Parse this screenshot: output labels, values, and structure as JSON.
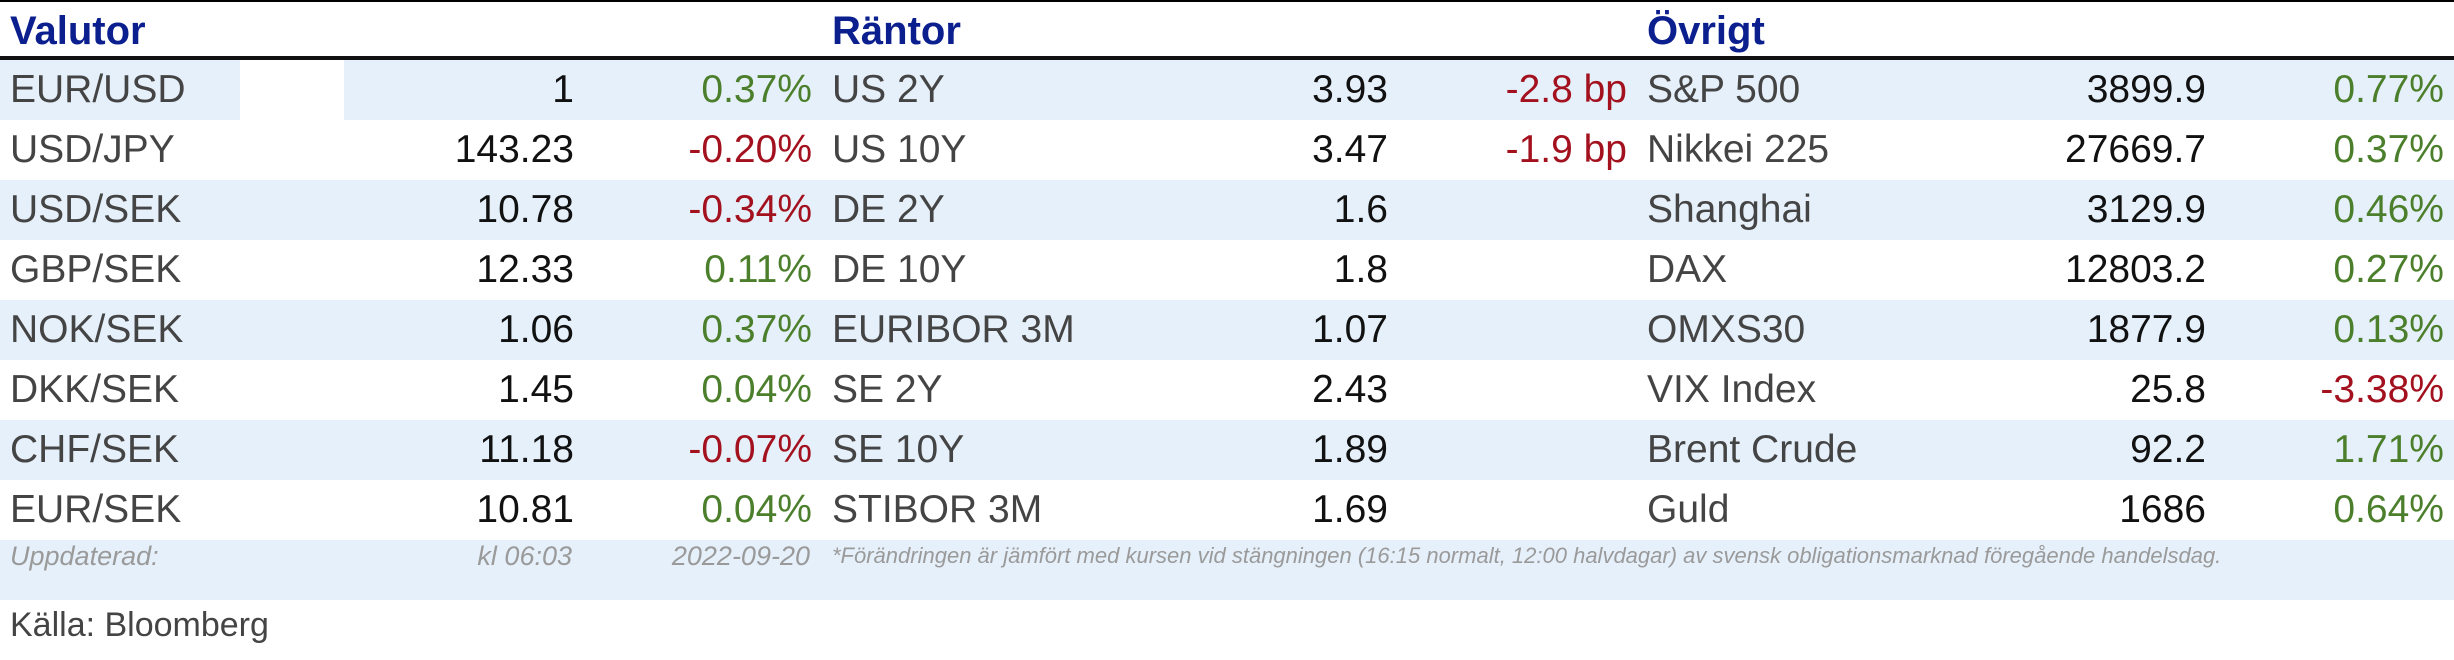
{
  "headers": {
    "valutor": "Valutor",
    "rantor": "Räntor",
    "ovrigt": "Övrigt"
  },
  "valutor": [
    {
      "name": "EUR/USD",
      "value": "1",
      "change": "0.37%",
      "dir": "pos"
    },
    {
      "name": "USD/JPY",
      "value": "143.23",
      "change": "-0.20%",
      "dir": "neg"
    },
    {
      "name": "USD/SEK",
      "value": "10.78",
      "change": "-0.34%",
      "dir": "neg"
    },
    {
      "name": "GBP/SEK",
      "value": "12.33",
      "change": "0.11%",
      "dir": "pos"
    },
    {
      "name": "NOK/SEK",
      "value": "1.06",
      "change": "0.37%",
      "dir": "pos"
    },
    {
      "name": "DKK/SEK",
      "value": "1.45",
      "change": "0.04%",
      "dir": "pos"
    },
    {
      "name": "CHF/SEK",
      "value": "11.18",
      "change": "-0.07%",
      "dir": "neg"
    },
    {
      "name": "EUR/SEK",
      "value": "10.81",
      "change": "0.04%",
      "dir": "pos"
    }
  ],
  "rantor": [
    {
      "name": "US 2Y",
      "value": "3.93",
      "change": "-2.8 bp",
      "dir": "neg"
    },
    {
      "name": "US 10Y",
      "value": "3.47",
      "change": "-1.9 bp",
      "dir": "neg"
    },
    {
      "name": "DE 2Y",
      "value": "1.6",
      "change": "",
      "dir": "neg"
    },
    {
      "name": "DE 10Y",
      "value": "1.8",
      "change": "",
      "dir": "neg"
    },
    {
      "name": "EURIBOR 3M",
      "value": "1.07",
      "change": "",
      "dir": "neg"
    },
    {
      "name": "SE 2Y",
      "value": "2.43",
      "change": "",
      "dir": "neg"
    },
    {
      "name": "SE 10Y",
      "value": "1.89",
      "change": "",
      "dir": "neg"
    },
    {
      "name": "STIBOR 3M",
      "value": "1.69",
      "change": "",
      "dir": "neg"
    }
  ],
  "ovrigt": [
    {
      "name": "S&P 500",
      "value": "3899.9",
      "change": "0.77%",
      "dir": "pos"
    },
    {
      "name": "Nikkei 225",
      "value": "27669.7",
      "change": "0.37%",
      "dir": "pos"
    },
    {
      "name": "Shanghai",
      "value": "3129.9",
      "change": "0.46%",
      "dir": "pos"
    },
    {
      "name": "DAX",
      "value": "12803.2",
      "change": "0.27%",
      "dir": "pos"
    },
    {
      "name": "OMXS30",
      "value": "1877.9",
      "change": "0.13%",
      "dir": "pos"
    },
    {
      "name": "VIX Index",
      "value": "25.8",
      "change": "-3.38%",
      "dir": "neg"
    },
    {
      "name": "Brent Crude",
      "value": "92.2",
      "change": "1.71%",
      "dir": "pos"
    },
    {
      "name": "Guld",
      "value": "1686",
      "change": "0.64%",
      "dir": "pos"
    }
  ],
  "footer": {
    "updated_label": "Uppdaterad:",
    "time": "kl 06:03",
    "date": "2022-09-20",
    "note": "*Förändringen är jämfört med kursen vid stängningen (16:15 normalt, 12:00 halvdagar) av svensk obligationsmarknad föregående handelsdag."
  },
  "source": "Källa: Bloomberg",
  "colors": {
    "header": "#0b1f8f",
    "positive": "#4c7f2c",
    "negative": "#a3111f",
    "stripe": "#e6f0fa"
  }
}
